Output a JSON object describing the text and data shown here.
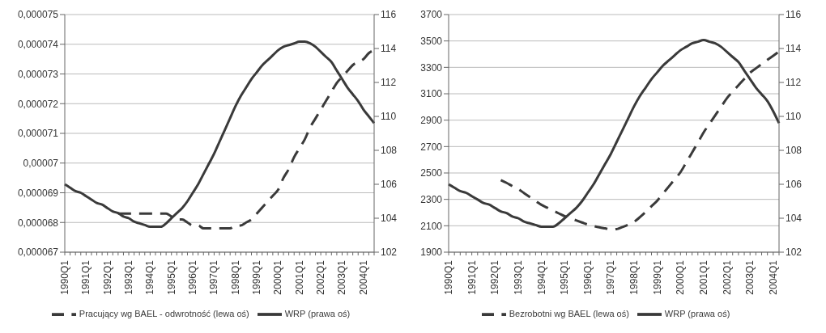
{
  "chart_data": [
    {
      "type": "line",
      "categories": [
        "1990Q1",
        null,
        null,
        null,
        "1991Q1",
        null,
        null,
        null,
        "1992Q1",
        null,
        null,
        null,
        "1993Q1",
        null,
        null,
        null,
        "1994Q1",
        null,
        null,
        null,
        "1995Q1",
        null,
        null,
        null,
        "1996Q1",
        null,
        null,
        null,
        "1997Q1",
        null,
        null,
        null,
        "1998Q1",
        null,
        null,
        null,
        "1999Q1",
        null,
        null,
        null,
        "2000Q1",
        null,
        null,
        null,
        "2001Q1",
        null,
        null,
        null,
        "2002Q1",
        null,
        null,
        null,
        "2003Q1",
        null,
        null,
        null,
        "2004Q1",
        null,
        null
      ],
      "series": [
        {
          "name": "Pracujący wg BAEL - odwrotność (lewa oś)",
          "color": "#3a3a3a",
          "line_style": "dashed",
          "values": [
            null,
            null,
            null,
            null,
            null,
            null,
            null,
            null,
            null,
            null,
            6.83e-05,
            6.83e-05,
            6.83e-05,
            6.83e-05,
            6.83e-05,
            6.83e-05,
            6.83e-05,
            6.83e-05,
            6.83e-05,
            6.83e-05,
            6.82e-05,
            6.81e-05,
            6.81e-05,
            6.8e-05,
            6.79e-05,
            6.79e-05,
            6.78e-05,
            6.78e-05,
            6.78e-05,
            6.78e-05,
            6.78e-05,
            6.78e-05,
            6.79e-05,
            6.79e-05,
            6.8e-05,
            6.81e-05,
            6.83e-05,
            6.85e-05,
            6.87e-05,
            6.89e-05,
            6.91e-05,
            6.95e-05,
            6.98e-05,
            7.02e-05,
            7.05e-05,
            7.08e-05,
            7.12e-05,
            7.15e-05,
            7.18e-05,
            7.21e-05,
            7.24e-05,
            7.27e-05,
            7.29e-05,
            7.31e-05,
            7.33e-05,
            7.34e-05,
            7.35e-05,
            7.37e-05,
            7.38e-05
          ]
        },
        {
          "name": "WRP (prawa oś)",
          "color": "#3a3a3a",
          "line_style": "solid",
          "axis": "y2",
          "values": [
            106.0,
            105.8,
            105.6,
            105.5,
            105.3,
            105.1,
            104.9,
            104.8,
            104.6,
            104.4,
            104.3,
            104.1,
            104.0,
            103.8,
            103.7,
            103.6,
            103.5,
            103.5,
            103.5,
            103.7,
            104.0,
            104.3,
            104.6,
            105.0,
            105.5,
            106.0,
            106.6,
            107.2,
            107.8,
            108.5,
            109.2,
            109.9,
            110.6,
            111.2,
            111.7,
            112.2,
            112.6,
            113.0,
            113.3,
            113.6,
            113.9,
            114.1,
            114.2,
            114.3,
            114.4,
            114.4,
            114.3,
            114.1,
            113.8,
            113.5,
            113.2,
            112.7,
            112.2,
            111.7,
            111.3,
            110.9,
            110.4,
            110.0,
            109.6
          ]
        }
      ],
      "ylim": [
        6.7e-05,
        7.5e-05
      ],
      "yticks": [
        {
          "value": 6.7e-05,
          "label": "0,000067"
        },
        {
          "value": 6.8e-05,
          "label": "0,000068"
        },
        {
          "value": 6.9e-05,
          "label": "0,000069"
        },
        {
          "value": 7e-05,
          "label": "0,00007"
        },
        {
          "value": 7.1e-05,
          "label": "0,000071"
        },
        {
          "value": 7.2e-05,
          "label": "0,000072"
        },
        {
          "value": 7.3e-05,
          "label": "0,000073"
        },
        {
          "value": 7.4e-05,
          "label": "0,000074"
        },
        {
          "value": 7.5e-05,
          "label": "0,000075"
        }
      ],
      "y2lim": [
        102,
        116
      ],
      "y2ticks": [
        102,
        104,
        106,
        108,
        110,
        112,
        114,
        116
      ],
      "grid": "y",
      "legend": "bottom"
    },
    {
      "type": "line",
      "categories": [
        "1990Q1",
        null,
        null,
        null,
        "1991Q1",
        null,
        null,
        null,
        "1992Q1",
        null,
        null,
        null,
        "1993Q1",
        null,
        null,
        null,
        "1994Q1",
        null,
        null,
        null,
        "1995Q1",
        null,
        null,
        null,
        "1996Q1",
        null,
        null,
        null,
        "1997Q1",
        null,
        null,
        null,
        "1998Q1",
        null,
        null,
        null,
        "1999Q1",
        null,
        null,
        null,
        "2000Q1",
        null,
        null,
        null,
        "2001Q1",
        null,
        null,
        null,
        "2002Q1",
        null,
        null,
        null,
        "2003Q1",
        null,
        null,
        null,
        "2004Q1",
        null
      ],
      "series": [
        {
          "name": "Bezrobotni wg BAEL (lewa oś)",
          "color": "#3a3a3a",
          "line_style": "dashed",
          "values": [
            null,
            null,
            null,
            null,
            null,
            null,
            null,
            null,
            null,
            2446,
            2425,
            2400,
            2378,
            2348,
            2318,
            2288,
            2259,
            2237,
            2215,
            2194,
            2173,
            2157,
            2141,
            2125,
            2109,
            2098,
            2088,
            2080,
            2072,
            2075,
            2090,
            2108,
            2130,
            2165,
            2205,
            2248,
            2291,
            2345,
            2398,
            2452,
            2506,
            2580,
            2655,
            2730,
            2808,
            2872,
            2937,
            3001,
            3066,
            3115,
            3165,
            3212,
            3259,
            3292,
            3325,
            3357,
            3388,
            3420
          ]
        },
        {
          "name": "WRP (prawa oś)",
          "color": "#3a3a3a",
          "line_style": "solid",
          "axis": "y2",
          "values": [
            106.0,
            105.8,
            105.6,
            105.5,
            105.3,
            105.1,
            104.9,
            104.8,
            104.6,
            104.4,
            104.3,
            104.1,
            104.0,
            103.8,
            103.7,
            103.6,
            103.5,
            103.5,
            103.5,
            103.7,
            104.0,
            104.3,
            104.6,
            105.0,
            105.5,
            106.0,
            106.6,
            107.2,
            107.8,
            108.5,
            109.2,
            109.9,
            110.6,
            111.2,
            111.7,
            112.2,
            112.6,
            113.0,
            113.3,
            113.6,
            113.9,
            114.1,
            114.3,
            114.4,
            114.5,
            114.4,
            114.3,
            114.1,
            113.8,
            113.5,
            113.2,
            112.7,
            112.2,
            111.7,
            111.3,
            110.9,
            110.3,
            109.6
          ]
        }
      ],
      "ylim": [
        1900,
        3700
      ],
      "yticks": [
        1900,
        2100,
        2300,
        2500,
        2700,
        2900,
        3100,
        3300,
        3500,
        3700
      ],
      "y2lim": [
        102,
        116
      ],
      "y2ticks": [
        102,
        104,
        106,
        108,
        110,
        112,
        114,
        116
      ],
      "grid": "y",
      "legend": "bottom"
    }
  ]
}
